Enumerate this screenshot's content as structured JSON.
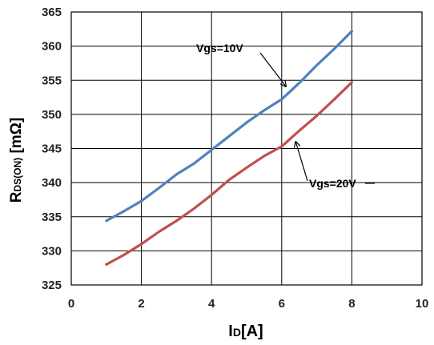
{
  "chart_data": {
    "type": "line",
    "x": [
      1,
      1.5,
      2,
      2.5,
      3,
      3.5,
      4,
      4.5,
      5,
      5.5,
      6,
      6.5,
      7,
      7.5,
      8
    ],
    "series": [
      {
        "name": "Vgs=10V",
        "color": "#4f81bd",
        "values": [
          334.4,
          335.8,
          337.3,
          339.2,
          341.2,
          342.8,
          344.8,
          346.8,
          348.8,
          350.6,
          352.2,
          354.6,
          357.2,
          359.6,
          362.2
        ]
      },
      {
        "name": "Vgs=20V",
        "color": "#c0504d",
        "values": [
          328.0,
          329.4,
          331.0,
          332.8,
          334.4,
          336.2,
          338.2,
          340.4,
          342.2,
          343.9,
          345.3,
          347.6,
          349.8,
          352.2,
          354.7
        ]
      }
    ],
    "xlabel_main": "I",
    "xlabel_sub": "D",
    "xlabel_unit": "[A]",
    "ylabel_main": "R",
    "ylabel_sub": "DS(ON)",
    "ylabel_unit": " [mΩ]",
    "xlim": [
      0,
      10
    ],
    "ylim": [
      325,
      365
    ],
    "xticks": [
      0,
      2,
      4,
      6,
      8,
      10
    ],
    "yticks": [
      325,
      330,
      335,
      340,
      345,
      350,
      355,
      360,
      365
    ],
    "grid": true,
    "annotations": [
      {
        "text": "Vgs=10V",
        "series": "Vgs=10V",
        "x": 6.3
      },
      {
        "text": "Vgs=20V",
        "series": "Vgs=20V",
        "x": 6.4
      }
    ]
  }
}
